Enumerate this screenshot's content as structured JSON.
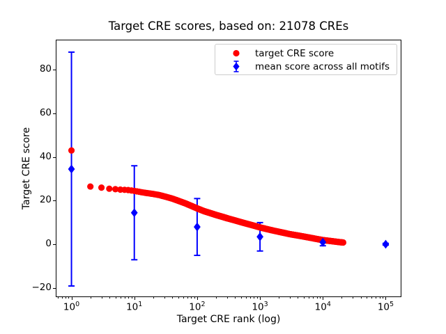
{
  "chart_data": {
    "type": "scatter",
    "title": "Target CRE scores, based on: 21078 CREs",
    "xlabel": "Target CRE rank (log)",
    "ylabel": "Target CRE score",
    "x_scale": "log",
    "y_scale": "linear",
    "xlim": [
      0.5623,
      177828
    ],
    "ylim": [
      -24.1,
      93.7
    ],
    "x_tick_exponents": [
      0,
      1,
      2,
      3,
      4,
      5
    ],
    "y_ticks": [
      {
        "value": -20,
        "label": "−20"
      },
      {
        "value": 0,
        "label": "0"
      },
      {
        "value": 20,
        "label": "20"
      },
      {
        "value": 40,
        "label": "40"
      },
      {
        "value": 60,
        "label": "60"
      },
      {
        "value": 80,
        "label": "80"
      }
    ],
    "grid": false,
    "legend_position": "upper right",
    "series": [
      {
        "name": "target CRE score",
        "color": "#ff0000",
        "marker": "circle",
        "total_points": 21078,
        "anchors": [
          [
            1,
            43
          ],
          [
            2,
            26.5
          ],
          [
            3,
            26
          ],
          [
            4,
            25.5
          ],
          [
            5,
            25.3
          ],
          [
            6,
            25.1
          ],
          [
            8,
            24.9
          ],
          [
            10,
            24.5
          ],
          [
            13,
            23.9
          ],
          [
            16,
            23.5
          ],
          [
            20,
            23.1
          ],
          [
            25,
            22.6
          ],
          [
            30,
            22.0
          ],
          [
            40,
            21.0
          ],
          [
            50,
            20.0
          ],
          [
            65,
            18.8
          ],
          [
            80,
            17.7
          ],
          [
            100,
            16.5
          ],
          [
            130,
            15.2
          ],
          [
            160,
            14.4
          ],
          [
            200,
            13.5
          ],
          [
            250,
            12.7
          ],
          [
            300,
            12.0
          ],
          [
            400,
            11.0
          ],
          [
            500,
            10.2
          ],
          [
            650,
            9.3
          ],
          [
            800,
            8.6
          ],
          [
            1000,
            7.8
          ],
          [
            1300,
            7.0
          ],
          [
            1600,
            6.4
          ],
          [
            2000,
            5.8
          ],
          [
            2500,
            5.2
          ],
          [
            3000,
            4.7
          ],
          [
            4000,
            4.1
          ],
          [
            5000,
            3.6
          ],
          [
            6500,
            3.0
          ],
          [
            8000,
            2.5
          ],
          [
            10000,
            2.0
          ],
          [
            14000,
            1.5
          ],
          [
            18000,
            1.1
          ],
          [
            21078,
            0.9
          ]
        ]
      },
      {
        "name": "mean score across all motifs",
        "color": "#0000ff",
        "marker": "diamond",
        "points": [
          {
            "x": 1,
            "y": 34.5,
            "err": 53.5
          },
          {
            "x": 10,
            "y": 14.5,
            "err": 21.5
          },
          {
            "x": 100,
            "y": 8,
            "err": 13
          },
          {
            "x": 1000,
            "y": 3.5,
            "err": 6.5
          },
          {
            "x": 10000,
            "y": 1.0,
            "err": 1.6
          },
          {
            "x": 100000,
            "y": 0.1,
            "err": 0.4
          }
        ]
      }
    ]
  }
}
